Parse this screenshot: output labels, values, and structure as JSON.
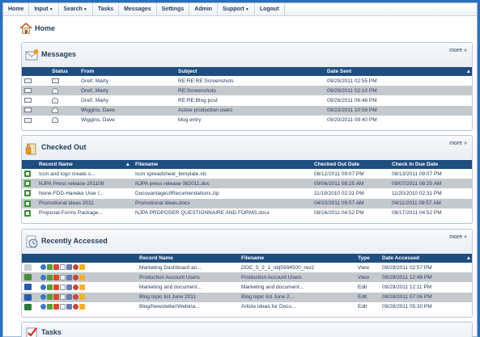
{
  "nav": {
    "items": [
      {
        "label": "Home",
        "dropdown": false
      },
      {
        "label": "Input",
        "dropdown": true
      },
      {
        "label": "Search",
        "dropdown": true
      },
      {
        "label": "Tasks",
        "dropdown": false
      },
      {
        "label": "Messages",
        "dropdown": false
      },
      {
        "label": "Settings",
        "dropdown": false
      },
      {
        "label": "Admin",
        "dropdown": false
      },
      {
        "label": "Support",
        "dropdown": true
      },
      {
        "label": "Logout",
        "dropdown": false
      }
    ]
  },
  "page": {
    "title": "Home"
  },
  "messages": {
    "title": "Messages",
    "more": "more »",
    "columns": [
      "Status",
      "From",
      "Subject",
      "Date Sent"
    ],
    "rows": [
      {
        "status": "unread-envelope",
        "from": "Greif, Marty",
        "subject": "RE:RE:RE:Screenshots",
        "date": "09/29/2011 02:55 PM"
      },
      {
        "status": "read-envelope",
        "from": "Greif, Marty",
        "subject": "RE:Screenshots",
        "date": "09/29/2011 02:10 PM"
      },
      {
        "status": "read-envelope",
        "from": "Greif, Marty",
        "subject": "RE:RE:Blog post",
        "date": "09/28/2011 08:48 PM"
      },
      {
        "status": "read-envelope",
        "from": "Wiggins, Dave",
        "subject": "Active production users",
        "date": "09/23/2011 10:59 PM"
      },
      {
        "status": "read-envelope",
        "from": "Wiggins, Dave",
        "subject": "blog entry",
        "date": "09/20/2011 09:40 PM"
      }
    ]
  },
  "checked_out": {
    "title": "Checked Out",
    "more": "more »",
    "columns": [
      "Record Name",
      "Filename",
      "Checked Out Date",
      "Check In Due Date"
    ],
    "rows": [
      {
        "record": "Icon and logo create s...",
        "filename": "Icon spreadsheet_template.xls",
        "out": "08/12/2011 09:07 PM",
        "due": "08/13/2011 09:07 PM"
      },
      {
        "record": "NJPA Press release 201108",
        "filename": "NJPA press release 082011.doc",
        "out": "09/06/2011 08:25 AM",
        "due": "09/07/2011 08:25 AM"
      },
      {
        "record": "None-FDD-Haneke User I...",
        "filename": "DocuvantageUIRecomendations.zip",
        "out": "11/19/2010 02:31 PM",
        "due": "11/20/2010 02:31 PM"
      },
      {
        "record": "Promotional ideas 2011",
        "filename": "Promotional ideas.docx",
        "out": "04/10/2011 09:57 AM",
        "due": "04/11/2011 09:57 AM"
      },
      {
        "record": "Proposal-Forms Package...",
        "filename": "NJPA PROPOSER QUESTIONNAIRE AND FORMS.docx",
        "out": "08/16/2011 04:52 PM",
        "due": "08/17/2011 04:52 PM"
      }
    ]
  },
  "recently_accessed": {
    "title": "Recently Accessed",
    "more": "more »",
    "columns": [
      "Record Name",
      "Filename",
      "Type",
      "Date Accessed"
    ],
    "rows": [
      {
        "record": "Marketing Dashboard an...",
        "filename": "DOC_5_2_1_obj5994500_rev2",
        "type": "View",
        "date": "09/29/2011 02:57 PM"
      },
      {
        "record": "Production Account Users",
        "filename": "Production Account Users",
        "type": "View",
        "date": "09/29/2011 12:49 PM"
      },
      {
        "record": "Marketing and document...",
        "filename": "Marketing and document...",
        "type": "Edit",
        "date": "09/29/2011 12:11 PM"
      },
      {
        "record": "Blog topic list June 2011",
        "filename": "Blog topic list June 2...",
        "type": "Edit",
        "date": "09/28/2011 07:06 PM"
      },
      {
        "record": "Blog/Newsletter/Webina...",
        "filename": "Article Ideas for Docu...",
        "type": "Edit",
        "date": "09/28/2011 05:30 PM"
      }
    ]
  },
  "tasks": {
    "title": "Tasks"
  },
  "colors": {
    "header": "#1e4d80",
    "alt_row": "#c4c9ce",
    "background": "#2b6fb8"
  }
}
